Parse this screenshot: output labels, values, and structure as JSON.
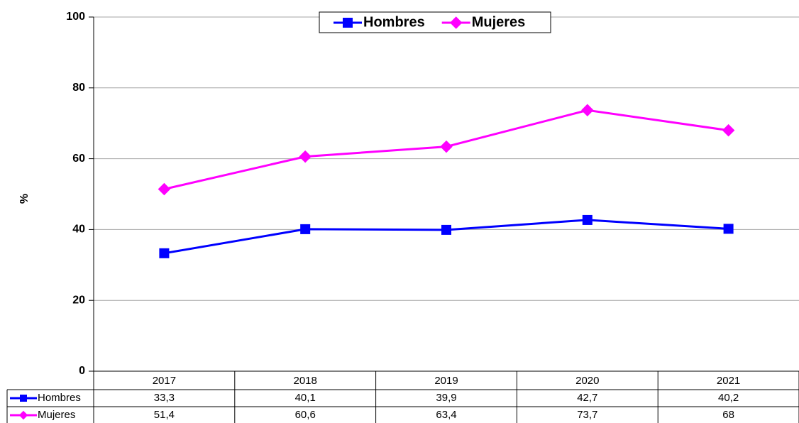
{
  "chart_data": {
    "type": "line",
    "y_label": "%",
    "categories": [
      "2017",
      "2018",
      "2019",
      "2020",
      "2021"
    ],
    "series": [
      {
        "name": "Hombres",
        "color": "#0000ff",
        "marker": "square",
        "values": [
          33.3,
          40.1,
          39.9,
          42.7,
          40.2
        ],
        "value_labels": [
          "33,3",
          "40,1",
          "39,9",
          "42,7",
          "40,2"
        ]
      },
      {
        "name": "Mujeres",
        "color": "#ff00ff",
        "marker": "diamond",
        "values": [
          51.4,
          60.6,
          63.4,
          73.7,
          68
        ],
        "value_labels": [
          "51,4",
          "60,6",
          "63,4",
          "73,7",
          "68"
        ]
      }
    ],
    "ylim": [
      0,
      100
    ],
    "yticks": [
      0,
      20,
      40,
      60,
      80,
      100
    ],
    "grid": true,
    "legend": "top"
  }
}
